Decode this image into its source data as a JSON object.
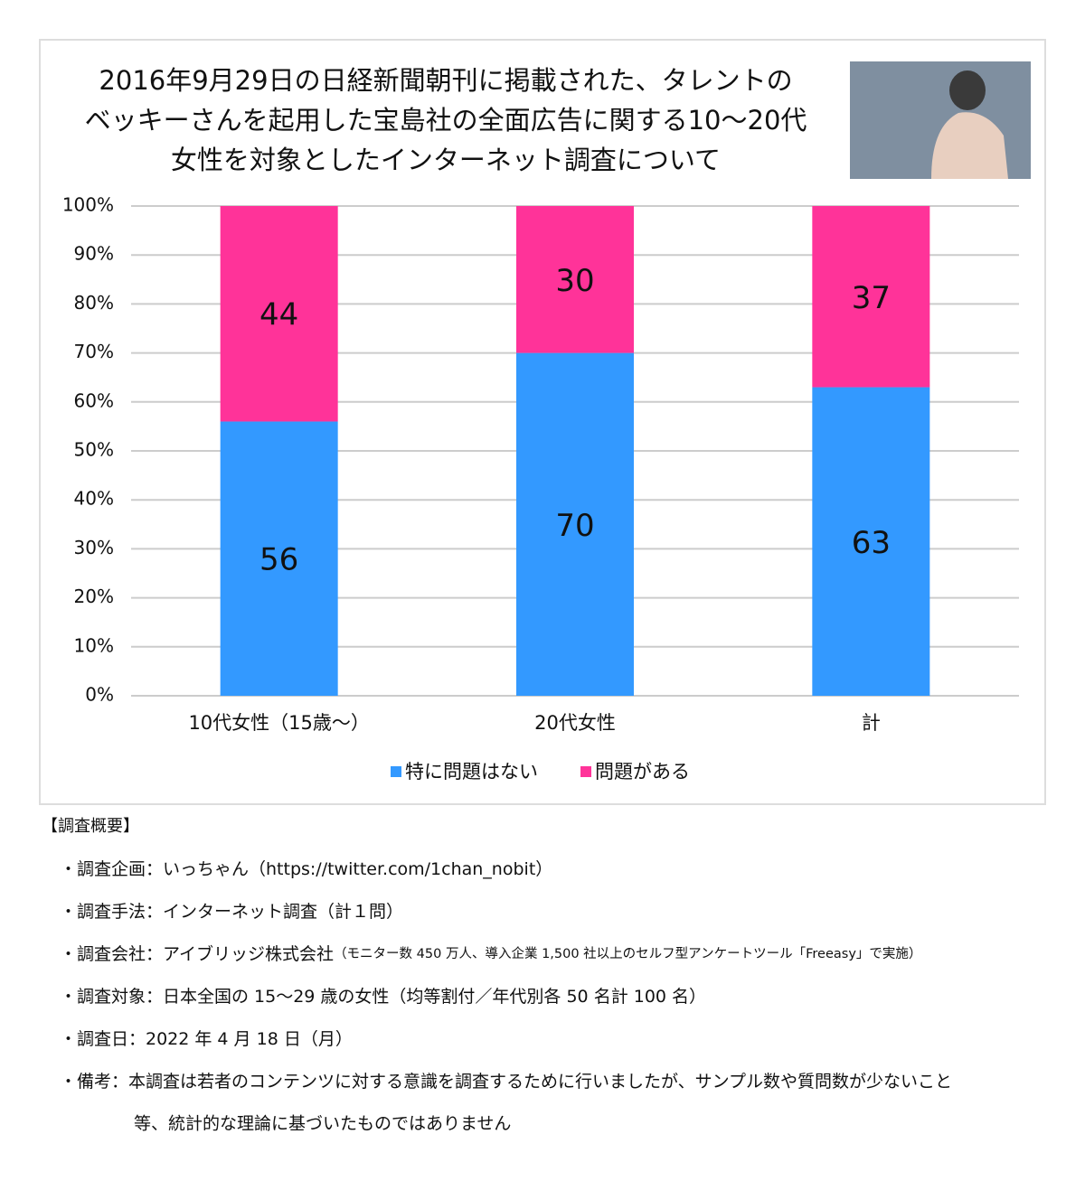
{
  "chart_data": {
    "type": "stacked-bar",
    "title": [
      "2016年9月29日の日経新聞朝刊に掲載された、タレントの",
      "ベッキーさんを起用した宝島社の全面広告に関する10〜20代",
      "女性を対象としたインターネット調査について"
    ],
    "categories": [
      "10代女性（15歳〜）",
      "20代女性",
      "計"
    ],
    "series": [
      {
        "name": "特に問題はない",
        "color": "#3399ff",
        "values": [
          56,
          70,
          63
        ]
      },
      {
        "name": "問題がある",
        "color": "#ff3399",
        "values": [
          44,
          30,
          37
        ]
      }
    ],
    "ylim": [
      0,
      100
    ],
    "yticks": [
      {
        "value": 0,
        "label": "0%"
      },
      {
        "value": 10,
        "label": "10%"
      },
      {
        "value": 20,
        "label": "20%"
      },
      {
        "value": 30,
        "label": "30%"
      },
      {
        "value": 40,
        "label": "40%"
      },
      {
        "value": 50,
        "label": "50%"
      },
      {
        "value": 60,
        "label": "60%"
      },
      {
        "value": 70,
        "label": "70%"
      },
      {
        "value": 80,
        "label": "80%"
      },
      {
        "value": 90,
        "label": "90%"
      },
      {
        "value": 100,
        "label": "100%"
      }
    ],
    "grid": true,
    "legend": "bottom"
  },
  "notes": {
    "heading": "【調査概要】",
    "items": [
      {
        "text": "・調査企画：いっちゃん（https://twitter.com/1chan_nobit）"
      },
      {
        "text": "・調査手法：インターネット調査（計１問）"
      },
      {
        "text": "・調査会社：アイブリッジ株式会社",
        "note": "（モニター数 450 万人、導入企業 1,500 社以上のセルフ型アンケートツール「Freeasy」で実施）"
      },
      {
        "text": "・調査対象：日本全国の 15〜29 歳の女性（均等割付／年代別各 50 名計 100 名）"
      },
      {
        "text": "・調査日：2022 年 4 月 18 日（月）"
      },
      {
        "text": "・備考：本調査は若者のコンテンツに対する意識を調査するために行いましたが、サンプル数や質問数が少ないこと",
        "continued": "等、統計的な理論に基づいたものではありません"
      }
    ]
  }
}
